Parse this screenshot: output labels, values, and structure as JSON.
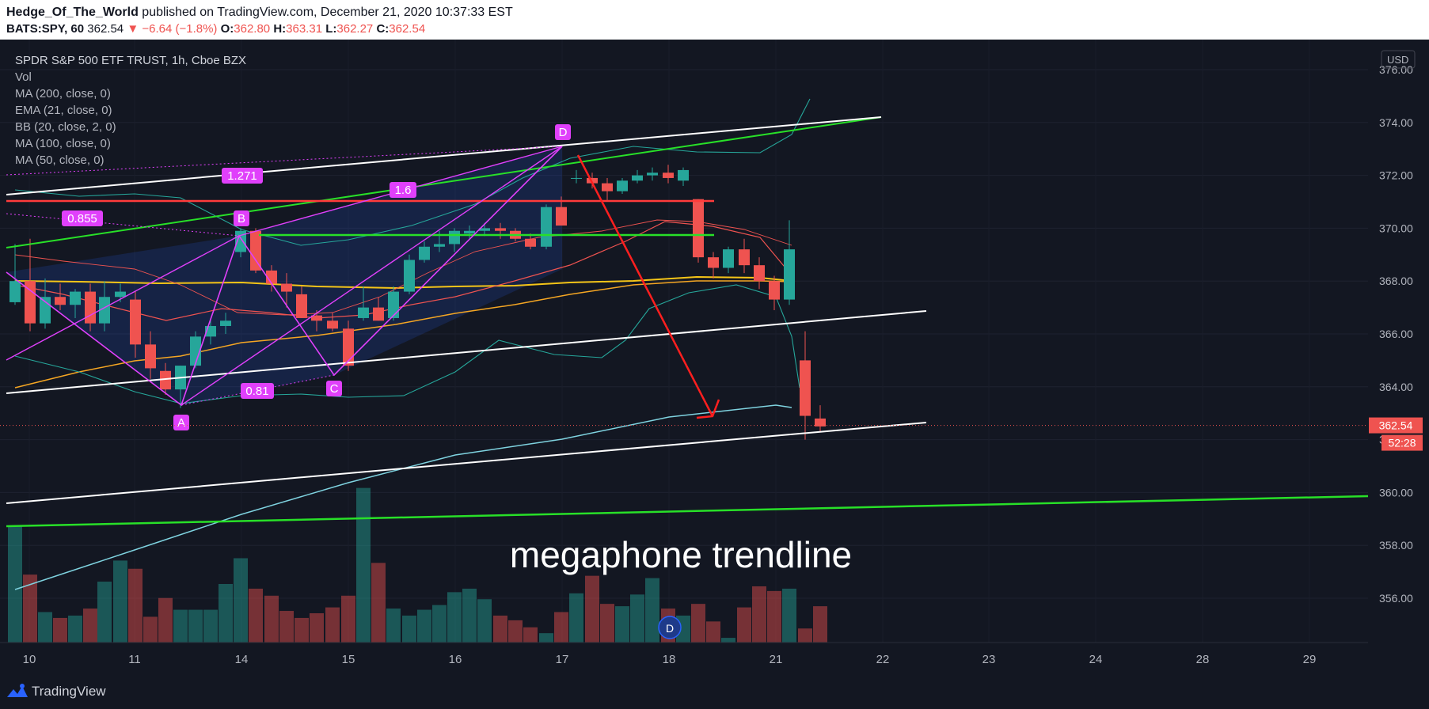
{
  "header": {
    "author": "Hedge_Of_The_World",
    "published_text": "published on TradingView.com, December 21, 2020 10:37:33 EST",
    "symbol": "BATS:SPY, 60",
    "last": "362.54",
    "change": "−6.64 (−1.8%)",
    "open_label": "O:",
    "open": "362.80",
    "high_label": "H:",
    "high": "363.31",
    "low_label": "L:",
    "low": "362.27",
    "close_label": "C:",
    "close": "362.54"
  },
  "legend": [
    "SPDR S&P 500 ETF TRUST, 1h, Cboe BZX",
    "Vol",
    "MA (200, close, 0)",
    "EMA (21, close, 0)",
    "BB (20, close, 2, 0)",
    "MA (100, close, 0)",
    "MA (50, close, 0)"
  ],
  "currency_label": "USD",
  "annotation_text": "megaphone trendline",
  "pattern_labels": {
    "A": "A",
    "B": "B",
    "C": "C",
    "D": "D"
  },
  "fib_labels": [
    "1.271",
    "0.855",
    "1.6",
    "0.81"
  ],
  "event_marker": "D",
  "price_tag": "362.54",
  "countdown_tag": "52:28",
  "brand": "TradingView",
  "colors": {
    "up": "#26a69a",
    "down": "#ef5350",
    "pattern": "#e040fb",
    "trend_green": "#28e028",
    "trend_white": "#ffffff",
    "arrow": "#ff1f1f",
    "ma200": "#7fd3e0",
    "ema21": "#ef5350",
    "bb": "#26a69a",
    "ma100": "#f5a623",
    "ma50": "#f5c518"
  },
  "chart_data": {
    "type": "candlestick",
    "symbol": "SPY",
    "interval": "1h",
    "y_axis": {
      "min": 354.0,
      "max": 376.6,
      "ticks": [
        356,
        358,
        360,
        362,
        364,
        366,
        368,
        370,
        372,
        374,
        376
      ]
    },
    "x_axis": {
      "ticks": [
        "10",
        "11",
        "14",
        "15",
        "16",
        "17",
        "18",
        "21",
        "22",
        "23",
        "24",
        "28",
        "29"
      ]
    },
    "candles": [
      [
        367.2,
        369.4,
        367.1,
        368.0
      ],
      [
        368.0,
        369.6,
        366.1,
        366.4
      ],
      [
        366.4,
        368.1,
        366.2,
        367.4
      ],
      [
        367.4,
        367.9,
        366.9,
        367.1
      ],
      [
        367.1,
        367.7,
        366.6,
        367.6
      ],
      [
        367.6,
        367.9,
        366.1,
        366.4
      ],
      [
        366.4,
        368.0,
        366.1,
        367.4
      ],
      [
        367.4,
        367.9,
        367.2,
        367.6
      ],
      [
        367.3,
        367.6,
        365.1,
        365.6
      ],
      [
        365.6,
        366.1,
        364.3,
        364.7
      ],
      [
        364.6,
        364.9,
        363.7,
        363.9
      ],
      [
        363.9,
        364.8,
        363.2,
        364.8
      ],
      [
        364.8,
        366.1,
        364.7,
        365.9
      ],
      [
        365.9,
        366.6,
        365.6,
        366.3
      ],
      [
        366.3,
        366.8,
        366.0,
        366.5
      ],
      [
        369.1,
        370.0,
        368.9,
        369.9
      ],
      [
        369.9,
        370.0,
        368.3,
        368.4
      ],
      [
        368.4,
        368.6,
        367.6,
        367.9
      ],
      [
        367.9,
        368.3,
        367.0,
        367.6
      ],
      [
        367.5,
        367.8,
        366.6,
        366.6
      ],
      [
        366.7,
        366.9,
        366.1,
        366.5
      ],
      [
        366.5,
        366.8,
        366.1,
        366.2
      ],
      [
        366.2,
        366.5,
        364.6,
        364.8
      ],
      [
        366.6,
        367.8,
        366.5,
        367.0
      ],
      [
        367.0,
        367.4,
        366.5,
        366.5
      ],
      [
        366.6,
        367.8,
        366.5,
        367.6
      ],
      [
        367.6,
        369.0,
        367.5,
        368.8
      ],
      [
        368.8,
        369.5,
        368.7,
        369.3
      ],
      [
        369.3,
        369.9,
        369.1,
        369.4
      ],
      [
        369.4,
        370.0,
        369.1,
        369.9
      ],
      [
        369.8,
        370.1,
        369.6,
        369.9
      ],
      [
        369.9,
        370.2,
        369.7,
        370.0
      ],
      [
        370.0,
        370.2,
        369.6,
        369.9
      ],
      [
        369.9,
        370.0,
        369.5,
        369.6
      ],
      [
        369.6,
        369.8,
        369.2,
        369.3
      ],
      [
        369.3,
        370.9,
        369.2,
        370.8
      ],
      [
        370.8,
        371.2,
        370.1,
        370.1
      ],
      [
        371.9,
        372.2,
        371.7,
        371.9
      ],
      [
        371.9,
        372.1,
        371.5,
        371.7
      ],
      [
        371.7,
        371.9,
        371.0,
        371.4
      ],
      [
        371.4,
        371.9,
        371.3,
        371.8
      ],
      [
        371.8,
        372.2,
        371.7,
        372.0
      ],
      [
        372.0,
        372.3,
        371.8,
        372.1
      ],
      [
        372.1,
        372.4,
        371.7,
        371.9
      ],
      [
        371.8,
        372.3,
        371.6,
        372.2
      ],
      [
        371.1,
        371.1,
        368.7,
        368.9
      ],
      [
        368.9,
        369.1,
        368.1,
        368.5
      ],
      [
        368.5,
        369.3,
        368.3,
        369.2
      ],
      [
        369.2,
        369.6,
        368.3,
        368.6
      ],
      [
        368.6,
        368.9,
        367.7,
        368.0
      ],
      [
        368.0,
        368.2,
        366.9,
        367.3
      ],
      [
        367.3,
        370.3,
        367.1,
        369.2
      ],
      [
        365.0,
        366.1,
        362.0,
        362.9
      ],
      [
        362.8,
        363.3,
        362.3,
        362.5
      ]
    ],
    "volume_relative": [
      1.0,
      0.58,
      0.26,
      0.21,
      0.23,
      0.29,
      0.52,
      0.7,
      0.63,
      0.22,
      0.38,
      0.28,
      0.28,
      0.28,
      0.5,
      0.72,
      0.46,
      0.4,
      0.27,
      0.21,
      0.25,
      0.3,
      0.4,
      1.32,
      0.68,
      0.29,
      0.23,
      0.28,
      0.32,
      0.43,
      0.46,
      0.37,
      0.23,
      0.19,
      0.13,
      0.08,
      0.26,
      0.42,
      0.57,
      0.33,
      0.31,
      0.41,
      0.55,
      0.29,
      0.23,
      0.33,
      0.18,
      0.04,
      0.3,
      0.48,
      0.44,
      0.46,
      0.12,
      0.31
    ],
    "trendlines_note": "megaphone trendline"
  }
}
